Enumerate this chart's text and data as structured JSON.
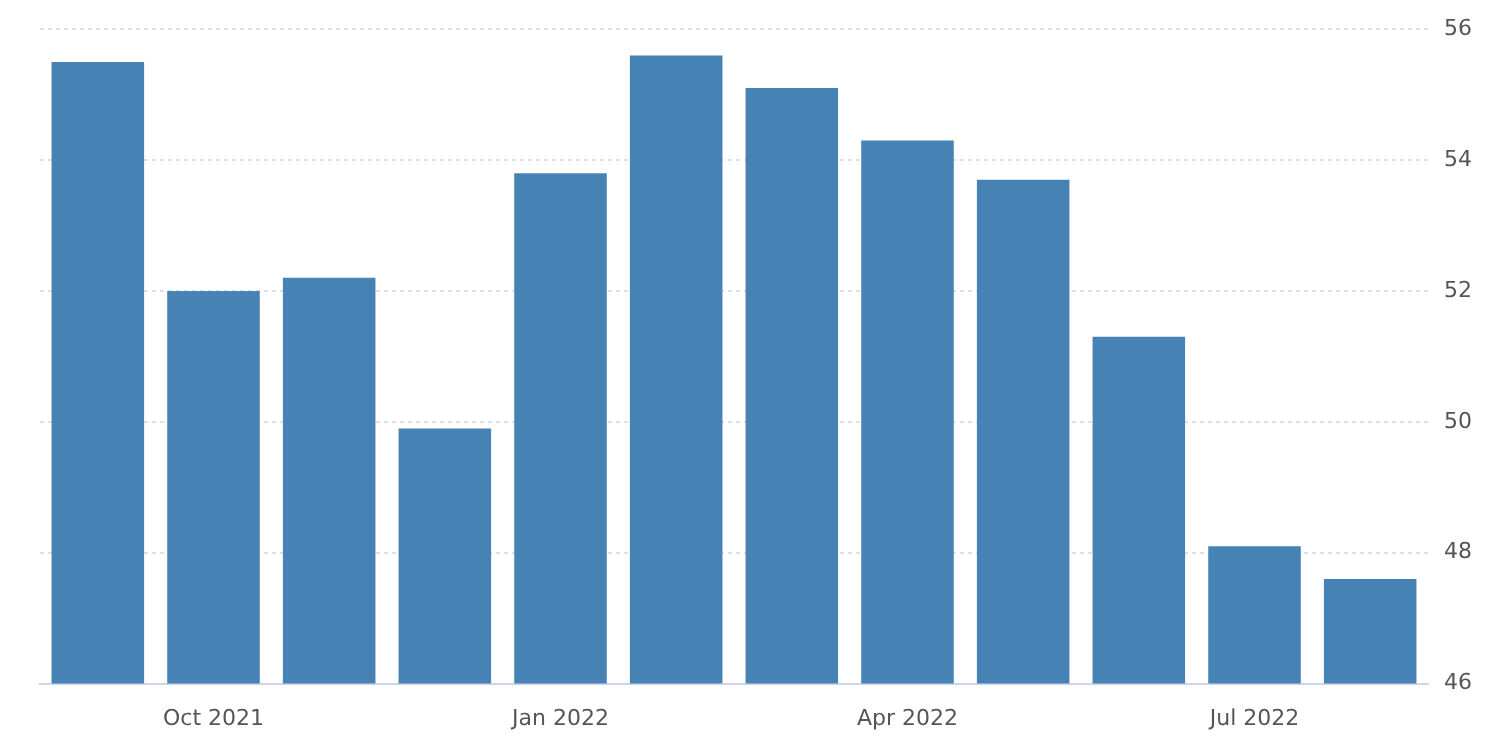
{
  "chart_data": {
    "type": "bar",
    "categories": [
      null,
      "Oct 2021",
      null,
      null,
      "Jan 2022",
      null,
      null,
      "Apr 2022",
      null,
      null,
      "Jul 2022",
      null
    ],
    "values": [
      55.5,
      52.0,
      52.2,
      49.9,
      53.8,
      55.6,
      55.1,
      54.3,
      53.7,
      51.3,
      48.1,
      47.6
    ],
    "color": "#4682b4",
    "ylim": [
      46,
      56
    ],
    "yticks": [
      46,
      48,
      50,
      52,
      54,
      56
    ],
    "grid": "y",
    "legend": false
  }
}
